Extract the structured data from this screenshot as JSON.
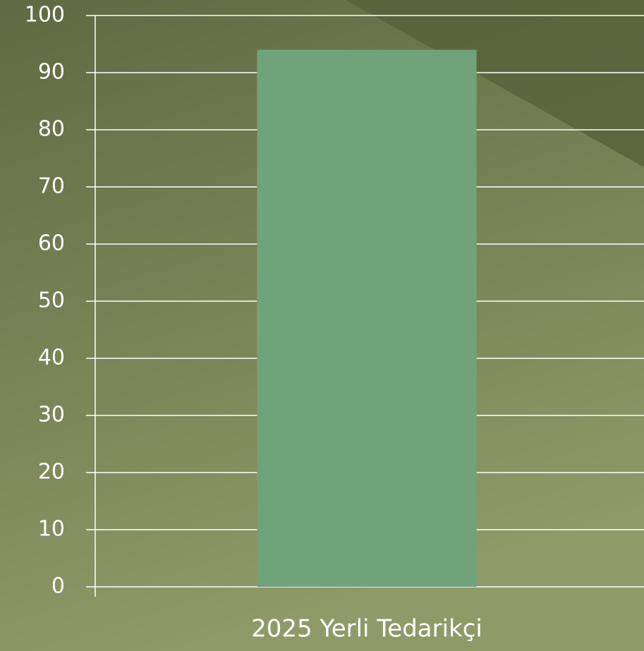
{
  "chart_data": {
    "type": "bar",
    "categories": [
      "2025 Yerli Tedarikçi"
    ],
    "values": [
      94
    ],
    "color": "#70a37a",
    "ylim": [
      0,
      100
    ],
    "yticks": [
      0,
      10,
      20,
      30,
      40,
      50,
      60,
      70,
      80,
      90,
      100
    ],
    "grid": true
  }
}
